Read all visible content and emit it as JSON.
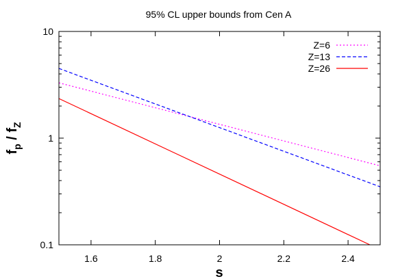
{
  "chart_data": {
    "type": "line",
    "title": "95% CL upper bounds from Cen A",
    "xlabel": "s",
    "ylabel": {
      "main1": "f",
      "sub1": "p",
      "sep": " / ",
      "main2": "f",
      "sub2": "Z"
    },
    "xlim": [
      1.5,
      2.5
    ],
    "ylim": [
      0.1,
      10
    ],
    "y_scale": "log",
    "x_ticks": [
      "1.6",
      "1.8",
      "2",
      "2.2",
      "2.4"
    ],
    "y_ticks": [
      "0.1",
      "1",
      "10"
    ],
    "legend_position": "top-right",
    "series": [
      {
        "name": "Z=6",
        "color": "#ff00ff",
        "dash": "dotted",
        "points": [
          [
            1.5,
            3.3
          ],
          [
            2.5,
            0.55
          ]
        ]
      },
      {
        "name": "Z=13",
        "color": "#0000ff",
        "dash": "dashed",
        "points": [
          [
            1.5,
            4.5
          ],
          [
            2.5,
            0.35
          ]
        ]
      },
      {
        "name": "Z=26",
        "color": "#ff0000",
        "dash": "solid",
        "points": [
          [
            1.5,
            2.35
          ],
          [
            2.468,
            0.1
          ]
        ]
      }
    ]
  }
}
